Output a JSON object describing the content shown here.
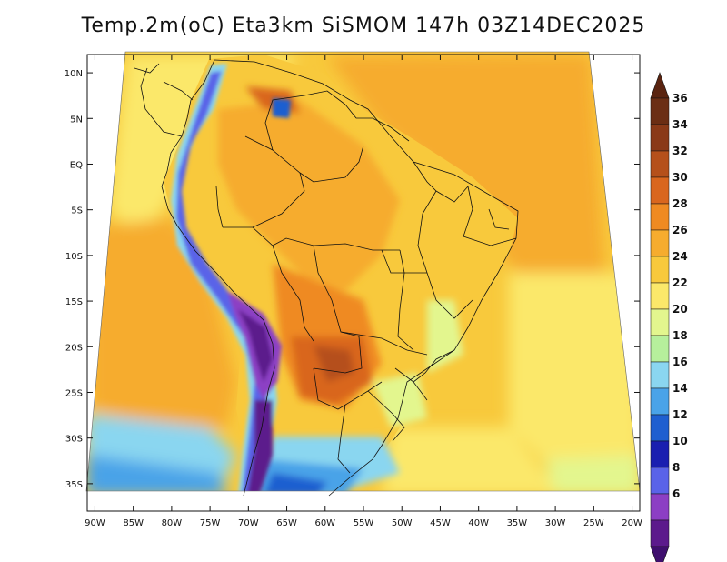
{
  "title": "Temp.2m(oC) Eta3km SiSMOM 147h 03Z14DEC2025",
  "map": {
    "lat_labels": [
      "10N",
      "5N",
      "EQ",
      "5S",
      "10S",
      "15S",
      "20S",
      "25S",
      "30S",
      "35S"
    ],
    "lon_labels": [
      "90W",
      "85W",
      "80W",
      "75W",
      "70W",
      "65W",
      "60W",
      "55W",
      "50W",
      "45W",
      "40W",
      "35W",
      "30W",
      "25W",
      "20W"
    ],
    "lat_values": [
      10,
      5,
      0,
      -5,
      -10,
      -15,
      -20,
      -25,
      -30,
      -35
    ],
    "lon_values": [
      -90,
      -85,
      -80,
      -75,
      -70,
      -65,
      -60,
      -55,
      -50,
      -45,
      -40,
      -35,
      -30,
      -25,
      -20
    ],
    "lat_range": [
      -38,
      12
    ],
    "lon_range": [
      -91,
      -19
    ],
    "variable": "2 m air temperature",
    "units": "oC"
  },
  "colorbar": {
    "labels": [
      "36",
      "34",
      "32",
      "30",
      "28",
      "26",
      "24",
      "22",
      "20",
      "18",
      "16",
      "14",
      "12",
      "10",
      "8",
      "6"
    ],
    "colors": [
      "#6b2e14",
      "#8a3a18",
      "#b5501b",
      "#d9661e",
      "#ef8a22",
      "#f6ac2e",
      "#f8c93c",
      "#fbe86a",
      "#e3f68e",
      "#b6ef9c",
      "#8ad6f0",
      "#4aa3e8",
      "#1f5fd0",
      "#1a1fb0",
      "#5a63e8",
      "#8c3fc4",
      "#5c1a8c"
    ],
    "top_arrow_color": "#5a2410",
    "bottom_arrow_color": "#3f0f6e"
  }
}
